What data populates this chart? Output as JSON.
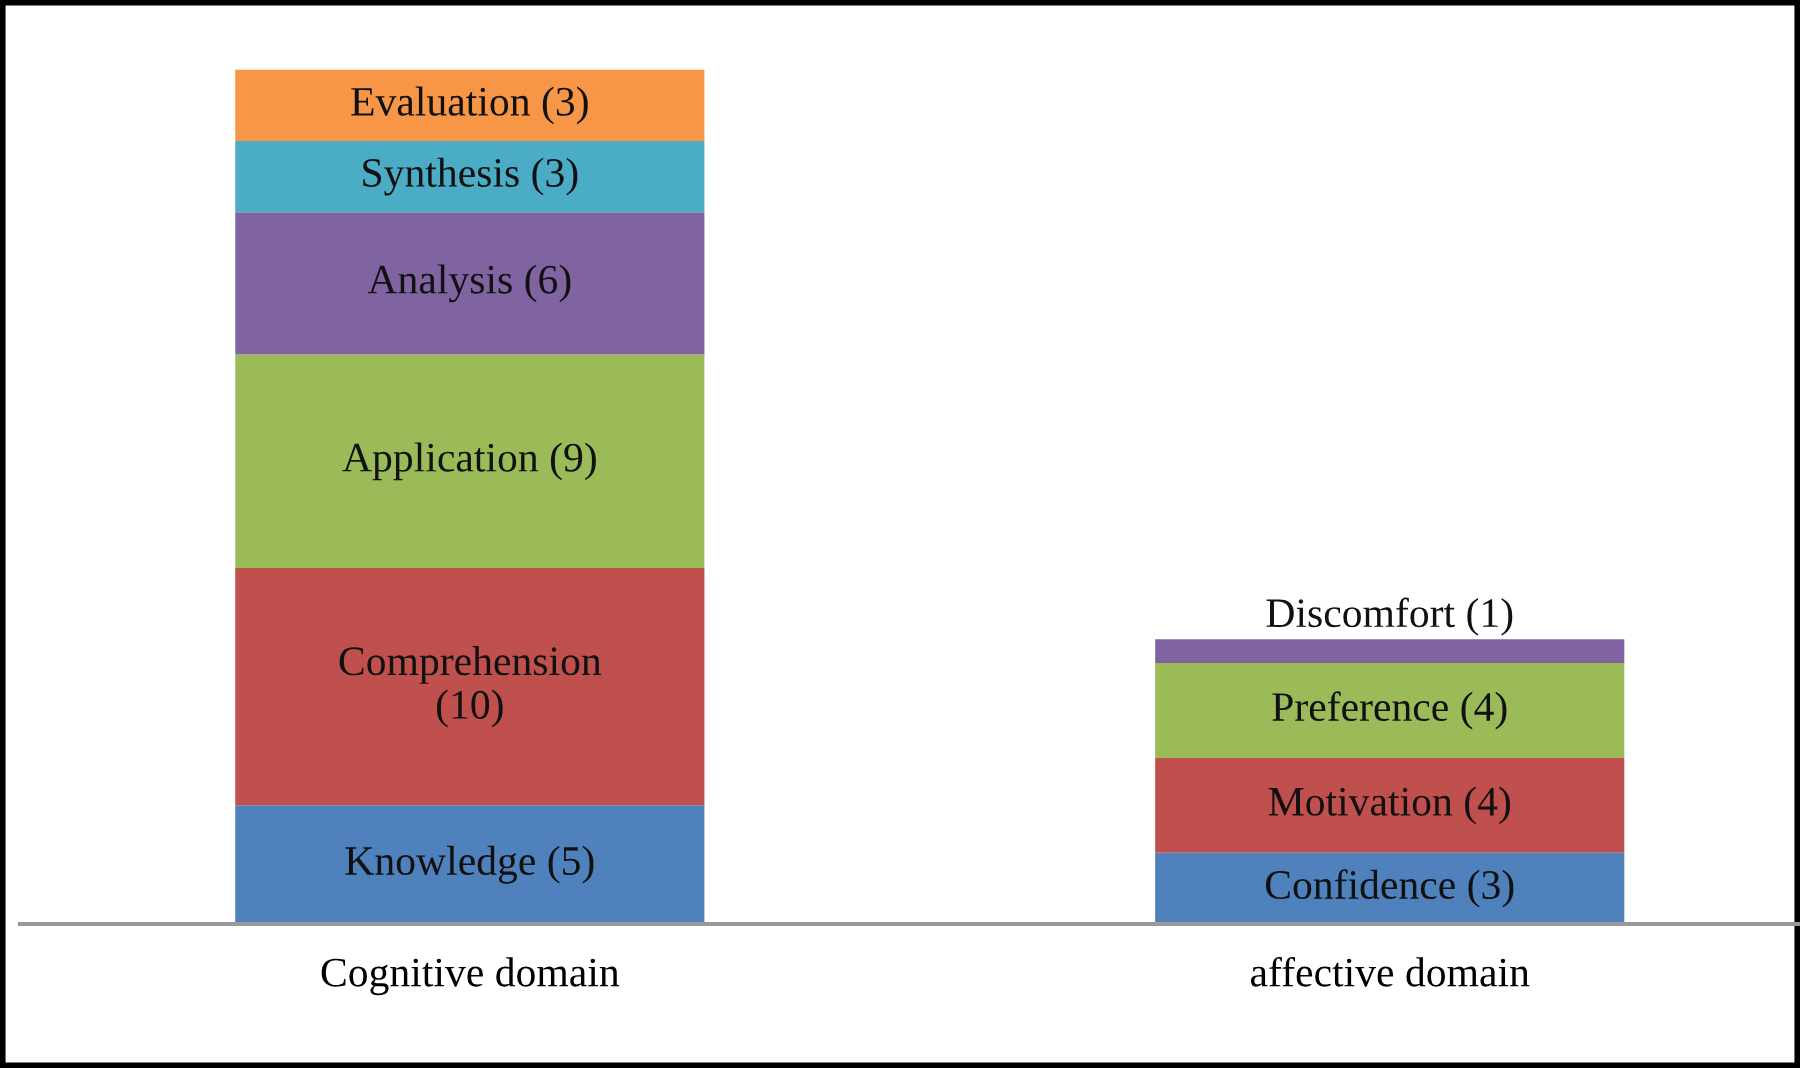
{
  "chart_data": {
    "type": "bar",
    "stacked": true,
    "categories": [
      "Cognitive domain",
      "affective domain"
    ],
    "series": [
      {
        "color": "#4f81bd",
        "values": [
          5,
          3
        ],
        "value_labels": [
          "Knowledge (5)",
          "Confidence (3)"
        ]
      },
      {
        "color": "#c0504d",
        "values": [
          10,
          4
        ],
        "value_labels": [
          "Comprehension\n(10)",
          "Motivation (4)"
        ]
      },
      {
        "color": "#9bbb59",
        "values": [
          9,
          4
        ],
        "value_labels": [
          "Application (9)",
          "Preference (4)"
        ]
      },
      {
        "color": "#8064a2",
        "values": [
          6,
          1
        ],
        "value_labels": [
          "Analysis (6)",
          "Discomfort (1)"
        ]
      },
      {
        "color": "#4bacc6",
        "values": [
          3,
          null
        ],
        "value_labels": [
          "Synthesis (3)",
          null
        ]
      },
      {
        "color": "#f79646",
        "values": [
          3,
          null
        ],
        "value_labels": [
          "Evaluation (3)",
          null
        ]
      }
    ],
    "grid": false,
    "legend": false
  }
}
